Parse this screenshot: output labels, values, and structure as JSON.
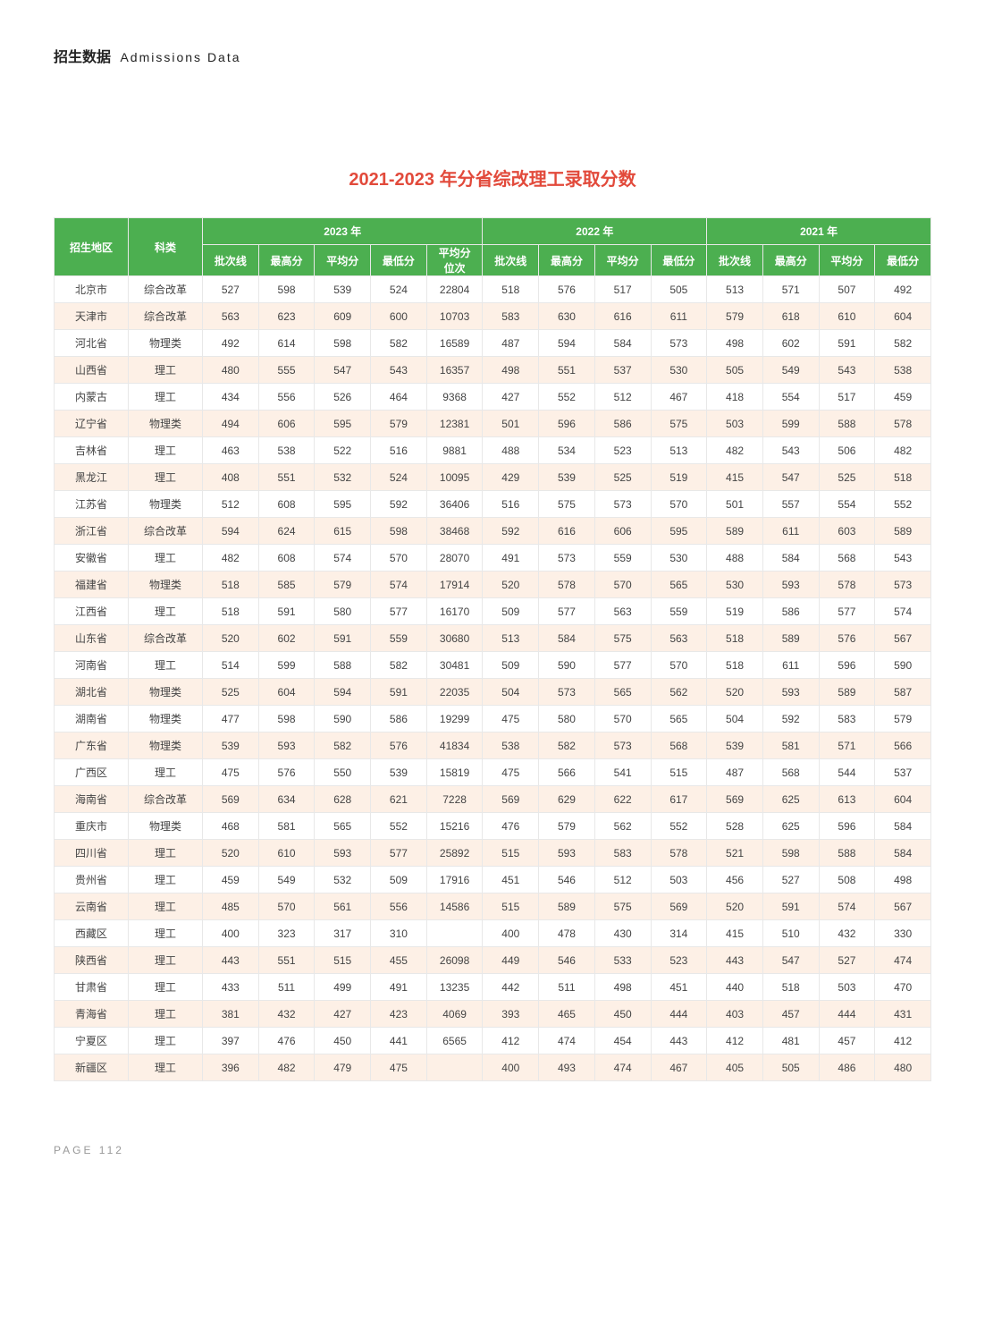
{
  "header": {
    "cn": "招生数据",
    "en": "Admissions Data"
  },
  "title": "2021-2023 年分省综改理工录取分数",
  "title_color": "#e24a3b",
  "columns": {
    "region": "招生地区",
    "category": "科类",
    "year2023": "2023 年",
    "year2022": "2022 年",
    "year2021": "2021 年",
    "cutoff": "批次线",
    "max": "最高分",
    "avg": "平均分",
    "min": "最低分",
    "avgrank": "平均分\n位次"
  },
  "rows": [
    {
      "region": "北京市",
      "cat": "综合改革",
      "y23": [
        527,
        598,
        539,
        524,
        22804
      ],
      "y22": [
        518,
        576,
        517,
        505
      ],
      "y21": [
        513,
        571,
        507,
        492
      ]
    },
    {
      "region": "天津市",
      "cat": "综合改革",
      "y23": [
        563,
        623,
        609,
        600,
        10703
      ],
      "y22": [
        583,
        630,
        616,
        611
      ],
      "y21": [
        579,
        618,
        610,
        604
      ]
    },
    {
      "region": "河北省",
      "cat": "物理类",
      "y23": [
        492,
        614,
        598,
        582,
        16589
      ],
      "y22": [
        487,
        594,
        584,
        573
      ],
      "y21": [
        498,
        602,
        591,
        582
      ]
    },
    {
      "region": "山西省",
      "cat": "理工",
      "y23": [
        480,
        555,
        547,
        543,
        16357
      ],
      "y22": [
        498,
        551,
        537,
        530
      ],
      "y21": [
        505,
        549,
        543,
        538
      ]
    },
    {
      "region": "内蒙古",
      "cat": "理工",
      "y23": [
        434,
        556,
        526,
        464,
        9368
      ],
      "y22": [
        427,
        552,
        512,
        467
      ],
      "y21": [
        418,
        554,
        517,
        459
      ]
    },
    {
      "region": "辽宁省",
      "cat": "物理类",
      "y23": [
        494,
        606,
        595,
        579,
        12381
      ],
      "y22": [
        501,
        596,
        586,
        575
      ],
      "y21": [
        503,
        599,
        588,
        578
      ]
    },
    {
      "region": "吉林省",
      "cat": "理工",
      "y23": [
        463,
        538,
        522,
        516,
        9881
      ],
      "y22": [
        488,
        534,
        523,
        513
      ],
      "y21": [
        482,
        543,
        506,
        482
      ]
    },
    {
      "region": "黑龙江",
      "cat": "理工",
      "y23": [
        408,
        551,
        532,
        524,
        10095
      ],
      "y22": [
        429,
        539,
        525,
        519
      ],
      "y21": [
        415,
        547,
        525,
        518
      ]
    },
    {
      "region": "江苏省",
      "cat": "物理类",
      "y23": [
        512,
        608,
        595,
        592,
        36406
      ],
      "y22": [
        516,
        575,
        573,
        570
      ],
      "y21": [
        501,
        557,
        554,
        552
      ]
    },
    {
      "region": "浙江省",
      "cat": "综合改革",
      "y23": [
        594,
        624,
        615,
        598,
        38468
      ],
      "y22": [
        592,
        616,
        606,
        595
      ],
      "y21": [
        589,
        611,
        603,
        589
      ]
    },
    {
      "region": "安徽省",
      "cat": "理工",
      "y23": [
        482,
        608,
        574,
        570,
        28070
      ],
      "y22": [
        491,
        573,
        559,
        530
      ],
      "y21": [
        488,
        584,
        568,
        543
      ]
    },
    {
      "region": "福建省",
      "cat": "物理类",
      "y23": [
        518,
        585,
        579,
        574,
        17914
      ],
      "y22": [
        520,
        578,
        570,
        565
      ],
      "y21": [
        530,
        593,
        578,
        573
      ]
    },
    {
      "region": "江西省",
      "cat": "理工",
      "y23": [
        518,
        591,
        580,
        577,
        16170
      ],
      "y22": [
        509,
        577,
        563,
        559
      ],
      "y21": [
        519,
        586,
        577,
        574
      ]
    },
    {
      "region": "山东省",
      "cat": "综合改革",
      "y23": [
        520,
        602,
        591,
        559,
        30680
      ],
      "y22": [
        513,
        584,
        575,
        563
      ],
      "y21": [
        518,
        589,
        576,
        567
      ]
    },
    {
      "region": "河南省",
      "cat": "理工",
      "y23": [
        514,
        599,
        588,
        582,
        30481
      ],
      "y22": [
        509,
        590,
        577,
        570
      ],
      "y21": [
        518,
        611,
        596,
        590
      ]
    },
    {
      "region": "湖北省",
      "cat": "物理类",
      "y23": [
        525,
        604,
        594,
        591,
        22035
      ],
      "y22": [
        504,
        573,
        565,
        562
      ],
      "y21": [
        520,
        593,
        589,
        587
      ]
    },
    {
      "region": "湖南省",
      "cat": "物理类",
      "y23": [
        477,
        598,
        590,
        586,
        19299
      ],
      "y22": [
        475,
        580,
        570,
        565
      ],
      "y21": [
        504,
        592,
        583,
        579
      ]
    },
    {
      "region": "广东省",
      "cat": "物理类",
      "y23": [
        539,
        593,
        582,
        576,
        41834
      ],
      "y22": [
        538,
        582,
        573,
        568
      ],
      "y21": [
        539,
        581,
        571,
        566
      ]
    },
    {
      "region": "广西区",
      "cat": "理工",
      "y23": [
        475,
        576,
        550,
        539,
        15819
      ],
      "y22": [
        475,
        566,
        541,
        515
      ],
      "y21": [
        487,
        568,
        544,
        537
      ]
    },
    {
      "region": "海南省",
      "cat": "综合改革",
      "y23": [
        569,
        634,
        628,
        621,
        7228
      ],
      "y22": [
        569,
        629,
        622,
        617
      ],
      "y21": [
        569,
        625,
        613,
        604
      ]
    },
    {
      "region": "重庆市",
      "cat": "物理类",
      "y23": [
        468,
        581,
        565,
        552,
        15216
      ],
      "y22": [
        476,
        579,
        562,
        552
      ],
      "y21": [
        528,
        625,
        596,
        584
      ]
    },
    {
      "region": "四川省",
      "cat": "理工",
      "y23": [
        520,
        610,
        593,
        577,
        25892
      ],
      "y22": [
        515,
        593,
        583,
        578
      ],
      "y21": [
        521,
        598,
        588,
        584
      ]
    },
    {
      "region": "贵州省",
      "cat": "理工",
      "y23": [
        459,
        549,
        532,
        509,
        17916
      ],
      "y22": [
        451,
        546,
        512,
        503
      ],
      "y21": [
        456,
        527,
        508,
        498
      ]
    },
    {
      "region": "云南省",
      "cat": "理工",
      "y23": [
        485,
        570,
        561,
        556,
        14586
      ],
      "y22": [
        515,
        589,
        575,
        569
      ],
      "y21": [
        520,
        591,
        574,
        567
      ]
    },
    {
      "region": "西藏区",
      "cat": "理工",
      "y23": [
        400,
        323,
        317,
        310,
        ""
      ],
      "y22": [
        400,
        478,
        430,
        314
      ],
      "y21": [
        415,
        510,
        432,
        330
      ]
    },
    {
      "region": "陕西省",
      "cat": "理工",
      "y23": [
        443,
        551,
        515,
        455,
        26098
      ],
      "y22": [
        449,
        546,
        533,
        523
      ],
      "y21": [
        443,
        547,
        527,
        474
      ]
    },
    {
      "region": "甘肃省",
      "cat": "理工",
      "y23": [
        433,
        511,
        499,
        491,
        13235
      ],
      "y22": [
        442,
        511,
        498,
        451
      ],
      "y21": [
        440,
        518,
        503,
        470
      ]
    },
    {
      "region": "青海省",
      "cat": "理工",
      "y23": [
        381,
        432,
        427,
        423,
        4069
      ],
      "y22": [
        393,
        465,
        450,
        444
      ],
      "y21": [
        403,
        457,
        444,
        431
      ]
    },
    {
      "region": "宁夏区",
      "cat": "理工",
      "y23": [
        397,
        476,
        450,
        441,
        6565
      ],
      "y22": [
        412,
        474,
        454,
        443
      ],
      "y21": [
        412,
        481,
        457,
        412
      ]
    },
    {
      "region": "新疆区",
      "cat": "理工",
      "y23": [
        396,
        482,
        479,
        475,
        ""
      ],
      "y22": [
        400,
        493,
        474,
        467
      ],
      "y21": [
        405,
        505,
        486,
        480
      ]
    }
  ],
  "footer": "PAGE 112"
}
